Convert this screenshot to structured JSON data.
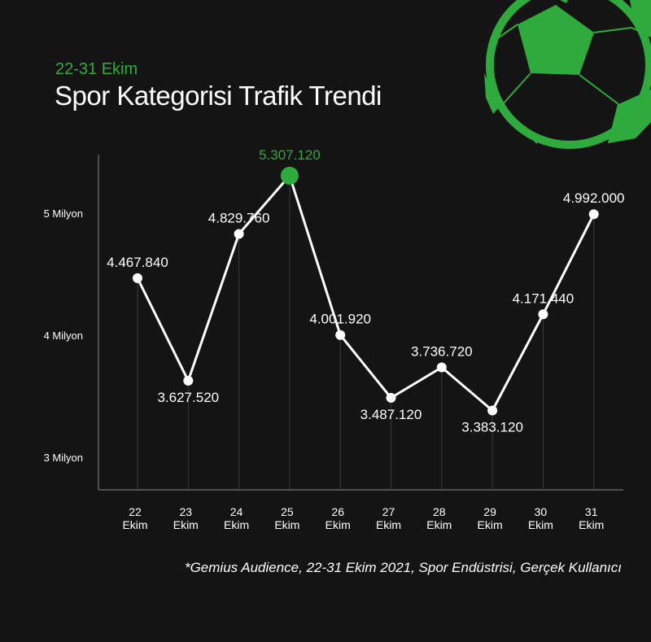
{
  "header": {
    "subtitle": "22-31 Ekim",
    "title": "Spor Kategorisi Trafik Trendi"
  },
  "footer": {
    "source": "*Gemius Audience, 22-31 Ekim 2021, Spor Endüstrisi, Gerçek Kullanıcı"
  },
  "colors": {
    "background": "#141414",
    "accent": "#2eab3c",
    "line": "#ffffff"
  },
  "decoration": {
    "icon": "soccer-ball-icon"
  },
  "chart_data": {
    "type": "line",
    "title": "Spor Kategorisi Trafik Trendi",
    "subtitle": "22-31 Ekim",
    "categories": [
      "22 Ekim",
      "23 Ekim",
      "24 Ekim",
      "25 Ekim",
      "26 Ekim",
      "27 Ekim",
      "28 Ekim",
      "29 Ekim",
      "30 Ekim",
      "31 Ekim"
    ],
    "x_ticks": [
      {
        "day": "22",
        "month": "Ekim"
      },
      {
        "day": "23",
        "month": "Ekim"
      },
      {
        "day": "24",
        "month": "Ekim"
      },
      {
        "day": "25",
        "month": "Ekim"
      },
      {
        "day": "26",
        "month": "Ekim"
      },
      {
        "day": "27",
        "month": "Ekim"
      },
      {
        "day": "28",
        "month": "Ekim"
      },
      {
        "day": "29",
        "month": "Ekim"
      },
      {
        "day": "30",
        "month": "Ekim"
      },
      {
        "day": "31",
        "month": "Ekim"
      }
    ],
    "values": [
      4467840,
      3627520,
      4829760,
      5307120,
      4001920,
      3487120,
      3736720,
      3383120,
      4171440,
      4992000
    ],
    "value_labels": [
      "4.467.840",
      "3.627.520",
      "4.829.760",
      "5.307.120",
      "4.001.920",
      "3.487.120",
      "3.736.720",
      "3.383.120",
      "4.171.440",
      "4.992.000"
    ],
    "highlight_index": 3,
    "y_ticks": [
      {
        "value": 5000000,
        "label": "5 Milyon"
      },
      {
        "value": 4000000,
        "label": "4 Milyon"
      },
      {
        "value": 3000000,
        "label": "3 Milyon"
      }
    ],
    "grid": false,
    "xlabel": "",
    "ylabel": ""
  }
}
